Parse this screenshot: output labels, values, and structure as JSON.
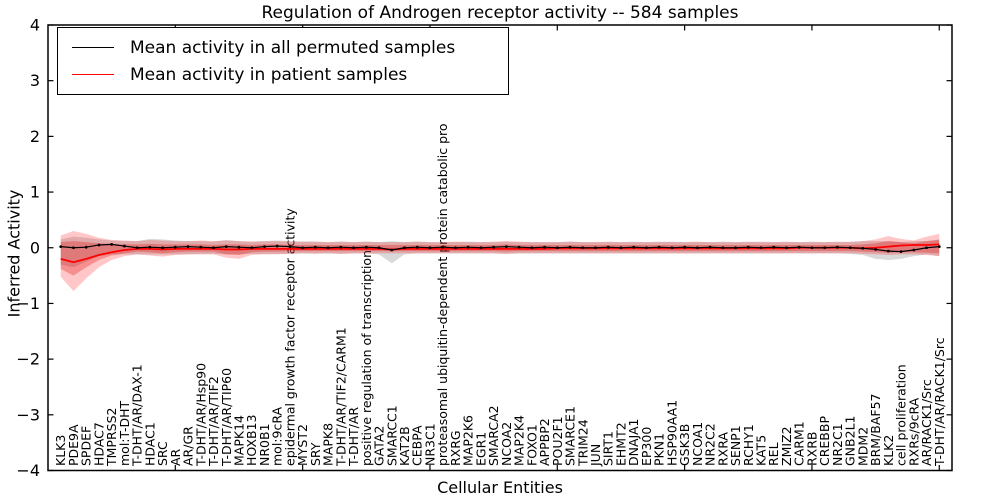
{
  "chart_data": {
    "type": "line",
    "title": "Regulation of Androgen receptor activity -- 584 samples",
    "xlabel": "Cellular Entities",
    "ylabel": "Inferred Activity",
    "ylim": [
      -4,
      4
    ],
    "yticks": [
      4,
      3,
      2,
      1,
      0,
      -1,
      -2,
      -3,
      -4
    ],
    "xticks": [
      10,
      20,
      30,
      40,
      50,
      60,
      70
    ],
    "grid": false,
    "legend_position": "upper left",
    "categories": [
      "KLK3",
      "PDE9A",
      "SPDEF",
      "HDAC7",
      "TMPRSS2",
      "mol:T-DHT",
      "T-DHT/AR/DAX-1",
      "HDAC1",
      "SRC",
      "AR",
      "AR/GR",
      "T-DHT/AR/Hsp90",
      "T-DHT/AR/TIF2",
      "T-DHT/AR/TIP60",
      "MAPK14",
      "HOXB13",
      "NR0B1",
      "mol:9cRA",
      "epidermal growth factor receptor activity",
      "MYST2",
      "SRY",
      "MAPK8",
      "T-DHT/AR/TIF2/CARM1",
      "T-DHT/AR",
      "positive regulation of transcription",
      "GATA2",
      "SMARCC1",
      "KAT2B",
      "CEBPA",
      "NR3C1",
      "proteasomal ubiquitin-dependent protein catabolic pro",
      "RXRG",
      "MAP2K6",
      "EGR1",
      "SMARCA2",
      "NCOA2",
      "MAP2K4",
      "FOXO1",
      "APPBP2",
      "POU2F1",
      "SMARCE1",
      "TRIM24",
      "JUN",
      "SIRT1",
      "EHMT2",
      "DNAJA1",
      "EP300",
      "PKN1",
      "HSP90AA1",
      "GSK3B",
      "NCOA1",
      "NR2C2",
      "RXRA",
      "SENP1",
      "RCHY1",
      "KAT5",
      "REL",
      "ZMIZ2",
      "CARM1",
      "RXRB",
      "CREBBP",
      "NR2C1",
      "GNB2L1",
      "MDM2",
      "BRM/BAF57",
      "KLK2",
      "cell proliferation",
      "RXRs/9cRA",
      "AR/RACK1/Src",
      "T-DHT/AR/RACK1/Src"
    ],
    "series": [
      {
        "name": "Mean activity in all permuted samples",
        "color": "#000000",
        "marker": "dot",
        "values": [
          0.02,
          0.0,
          0.01,
          0.05,
          0.06,
          0.03,
          0.0,
          0.01,
          0.0,
          0.01,
          0.02,
          0.01,
          0.0,
          0.02,
          0.01,
          0.0,
          0.02,
          0.03,
          0.02,
          0.0,
          0.01,
          0.0,
          0.01,
          0.0,
          0.01,
          0.0,
          -0.04,
          0.0,
          0.01,
          0.0,
          0.01,
          0.0,
          0.01,
          0.0,
          0.01,
          0.02,
          0.01,
          0.0,
          0.01,
          0.0,
          0.01,
          0.0,
          0.0,
          0.01,
          0.0,
          0.01,
          0.0,
          0.01,
          0.0,
          0.01,
          0.0,
          0.01,
          0.0,
          0.0,
          0.01,
          0.0,
          0.01,
          0.0,
          0.01,
          0.0,
          0.0,
          0.01,
          0.0,
          -0.01,
          -0.03,
          -0.06,
          -0.07,
          -0.04,
          0.0,
          0.02
        ],
        "band": {
          "color": "#787878",
          "opacity": 0.28,
          "upper": [
            0.15,
            0.2,
            0.18,
            0.15,
            0.13,
            0.12,
            0.12,
            0.16,
            0.15,
            0.13,
            0.12,
            0.12,
            0.11,
            0.14,
            0.12,
            0.11,
            0.12,
            0.13,
            0.12,
            0.11,
            0.11,
            0.1,
            0.11,
            0.1,
            0.11,
            0.1,
            0.12,
            0.1,
            0.11,
            0.1,
            0.1,
            0.1,
            0.11,
            0.1,
            0.1,
            0.11,
            0.1,
            0.1,
            0.1,
            0.1,
            0.11,
            0.1,
            0.1,
            0.1,
            0.1,
            0.11,
            0.1,
            0.1,
            0.11,
            0.1,
            0.1,
            0.1,
            0.11,
            0.1,
            0.1,
            0.11,
            0.1,
            0.1,
            0.1,
            0.11,
            0.1,
            0.1,
            0.11,
            0.12,
            0.12,
            0.12,
            0.1,
            0.12,
            0.12,
            0.15
          ],
          "lower": [
            -0.3,
            -0.35,
            -0.25,
            -0.15,
            -0.12,
            -0.12,
            -0.12,
            -0.12,
            -0.12,
            -0.12,
            -0.12,
            -0.11,
            -0.11,
            -0.12,
            -0.12,
            -0.11,
            -0.11,
            -0.11,
            -0.11,
            -0.1,
            -0.1,
            -0.1,
            -0.11,
            -0.1,
            -0.1,
            -0.12,
            -0.28,
            -0.12,
            -0.1,
            -0.1,
            -0.1,
            -0.1,
            -0.1,
            -0.1,
            -0.1,
            -0.11,
            -0.1,
            -0.1,
            -0.1,
            -0.1,
            -0.1,
            -0.1,
            -0.1,
            -0.1,
            -0.1,
            -0.1,
            -0.1,
            -0.1,
            -0.1,
            -0.1,
            -0.1,
            -0.1,
            -0.1,
            -0.1,
            -0.1,
            -0.1,
            -0.1,
            -0.1,
            -0.1,
            -0.1,
            -0.1,
            -0.1,
            -0.11,
            -0.13,
            -0.2,
            -0.22,
            -0.2,
            -0.15,
            -0.12,
            -0.15
          ]
        }
      },
      {
        "name": "Mean activity in patient samples",
        "color": "#ff0000",
        "marker": "none",
        "values": [
          -0.2,
          -0.26,
          -0.2,
          -0.13,
          -0.08,
          -0.04,
          -0.02,
          -0.02,
          -0.03,
          -0.02,
          -0.02,
          -0.02,
          -0.02,
          -0.03,
          -0.03,
          -0.02,
          -0.02,
          -0.02,
          -0.02,
          -0.02,
          -0.02,
          -0.02,
          -0.02,
          -0.02,
          -0.02,
          -0.02,
          -0.03,
          -0.02,
          -0.02,
          -0.02,
          -0.02,
          -0.02,
          -0.02,
          -0.02,
          -0.02,
          -0.02,
          -0.02,
          -0.02,
          -0.02,
          -0.01,
          -0.01,
          -0.01,
          -0.01,
          -0.01,
          -0.01,
          -0.01,
          -0.01,
          -0.01,
          -0.01,
          -0.01,
          -0.01,
          -0.01,
          -0.01,
          -0.01,
          -0.01,
          -0.01,
          -0.01,
          -0.01,
          0.0,
          0.0,
          0.0,
          0.0,
          0.0,
          -0.01,
          0.0,
          0.02,
          0.04,
          0.05,
          0.05,
          0.06
        ],
        "band": {
          "color": "#ff0000",
          "opacity": 0.22,
          "upper": [
            0.22,
            0.3,
            0.25,
            0.18,
            0.14,
            0.13,
            0.12,
            0.14,
            0.13,
            0.12,
            0.12,
            0.13,
            0.12,
            0.13,
            0.12,
            0.11,
            0.12,
            0.12,
            0.11,
            0.11,
            0.11,
            0.1,
            0.11,
            0.1,
            0.11,
            0.1,
            0.1,
            0.1,
            0.11,
            0.1,
            0.1,
            0.11,
            0.1,
            0.1,
            0.11,
            0.12,
            0.11,
            0.1,
            0.1,
            0.1,
            0.11,
            0.1,
            0.1,
            0.11,
            0.1,
            0.1,
            0.1,
            0.11,
            0.1,
            0.1,
            0.11,
            0.1,
            0.1,
            0.1,
            0.11,
            0.1,
            0.1,
            0.11,
            0.1,
            0.1,
            0.1,
            0.11,
            0.1,
            0.12,
            0.15,
            0.21,
            0.16,
            0.13,
            0.2,
            0.25
          ],
          "lower": [
            -0.52,
            -0.78,
            -0.55,
            -0.35,
            -0.22,
            -0.15,
            -0.12,
            -0.14,
            -0.16,
            -0.13,
            -0.12,
            -0.12,
            -0.12,
            -0.18,
            -0.2,
            -0.13,
            -0.12,
            -0.12,
            -0.11,
            -0.1,
            -0.11,
            -0.1,
            -0.11,
            -0.1,
            -0.1,
            -0.1,
            -0.1,
            -0.1,
            -0.1,
            -0.1,
            -0.1,
            -0.1,
            -0.1,
            -0.1,
            -0.1,
            -0.11,
            -0.1,
            -0.1,
            -0.1,
            -0.1,
            -0.1,
            -0.1,
            -0.1,
            -0.1,
            -0.1,
            -0.1,
            -0.1,
            -0.1,
            -0.1,
            -0.1,
            -0.1,
            -0.1,
            -0.1,
            -0.1,
            -0.1,
            -0.1,
            -0.1,
            -0.1,
            -0.1,
            -0.1,
            -0.1,
            -0.1,
            -0.1,
            -0.11,
            -0.12,
            -0.13,
            -0.12,
            -0.12,
            -0.13,
            -0.15
          ]
        },
        "inner_band": {
          "color": "#e00000",
          "opacity": 0.28,
          "upper": [
            0.1,
            0.12,
            0.1,
            0.08,
            0.07,
            0.06,
            0.06,
            0.07,
            0.06,
            0.06,
            0.06,
            0.06,
            0.05,
            0.06,
            0.06,
            0.05,
            0.06,
            0.06,
            0.05,
            0.05,
            0.05,
            0.05,
            0.05,
            0.05,
            0.05,
            0.05,
            0.05,
            0.05,
            0.05,
            0.05,
            0.05,
            0.05,
            0.05,
            0.05,
            0.05,
            0.06,
            0.05,
            0.05,
            0.05,
            0.05,
            0.05,
            0.05,
            0.05,
            0.05,
            0.05,
            0.05,
            0.05,
            0.05,
            0.05,
            0.05,
            0.05,
            0.05,
            0.05,
            0.05,
            0.05,
            0.05,
            0.05,
            0.05,
            0.05,
            0.05,
            0.05,
            0.05,
            0.05,
            0.06,
            0.08,
            0.12,
            0.1,
            0.08,
            0.12,
            0.14
          ],
          "lower": [
            -0.38,
            -0.5,
            -0.35,
            -0.22,
            -0.14,
            -0.1,
            -0.07,
            -0.08,
            -0.1,
            -0.08,
            -0.07,
            -0.07,
            -0.07,
            -0.12,
            -0.13,
            -0.08,
            -0.07,
            -0.07,
            -0.06,
            -0.06,
            -0.06,
            -0.06,
            -0.06,
            -0.06,
            -0.06,
            -0.06,
            -0.06,
            -0.06,
            -0.06,
            -0.06,
            -0.06,
            -0.06,
            -0.06,
            -0.06,
            -0.06,
            -0.07,
            -0.06,
            -0.06,
            -0.06,
            -0.06,
            -0.06,
            -0.06,
            -0.06,
            -0.06,
            -0.06,
            -0.06,
            -0.06,
            -0.06,
            -0.06,
            -0.06,
            -0.06,
            -0.06,
            -0.06,
            -0.06,
            -0.06,
            -0.06,
            -0.06,
            -0.06,
            -0.06,
            -0.06,
            -0.06,
            -0.06,
            -0.06,
            -0.07,
            -0.08,
            -0.09,
            -0.08,
            -0.08,
            -0.09,
            -0.1
          ]
        }
      }
    ]
  },
  "legend": {
    "entries": [
      {
        "label": "Mean activity in all permuted samples",
        "color": "#000000"
      },
      {
        "label": "Mean activity in patient samples",
        "color": "#ff0000"
      }
    ]
  }
}
